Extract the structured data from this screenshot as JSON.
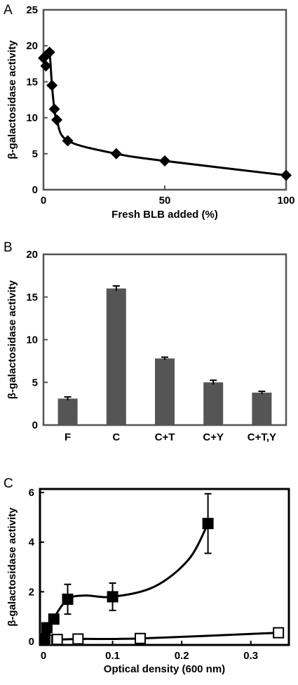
{
  "chart_data": [
    {
      "panel": "A",
      "type": "line",
      "xlabel": "Fresh BLB added (%)",
      "ylabel": "β-galactosidase activity",
      "xlim": [
        0,
        100
      ],
      "ylim": [
        0,
        25
      ],
      "xticks": [
        0,
        50,
        100
      ],
      "yticks": [
        0,
        5,
        10,
        15,
        20,
        25
      ],
      "marker": "diamond",
      "series": [
        {
          "x": [
            0,
            1,
            1.5,
            2.5,
            3.5,
            4.5,
            5.5,
            10,
            30,
            50,
            100
          ],
          "y": [
            18.3,
            17.2,
            18.8,
            19.1,
            14.5,
            11.2,
            9.7,
            6.8,
            5.0,
            4.0,
            2.0
          ]
        }
      ]
    },
    {
      "panel": "B",
      "type": "bar",
      "xlabel": "",
      "ylabel": "β-galactosidase activity",
      "ylim": [
        0,
        20
      ],
      "yticks": [
        0,
        5,
        10,
        15,
        20
      ],
      "categories": [
        "F",
        "C",
        "C+T",
        "C+Y",
        "C+T,Y"
      ],
      "values": [
        3.1,
        16.0,
        7.8,
        5.0,
        3.8
      ],
      "errors": [
        0.2,
        0.3,
        0.15,
        0.25,
        0.15
      ],
      "bar_color": "#555555"
    },
    {
      "panel": "C",
      "type": "line",
      "xlabel": "Optical density (600 nm)",
      "ylabel": "β-galactosidase activity",
      "xlim": [
        0,
        0.35
      ],
      "ylim": [
        0,
        6
      ],
      "xticks": [
        0,
        0.1,
        0.2,
        0.3
      ],
      "xtick_labels": [
        "0",
        "0.1",
        "0.2",
        "0.3"
      ],
      "yticks": [
        0,
        2,
        4,
        6
      ],
      "series": [
        {
          "marker": "filled-square",
          "x": [
            0.002,
            0.005,
            0.015,
            0.035,
            0.1,
            0.238
          ],
          "y": [
            0.1,
            0.55,
            0.9,
            1.7,
            1.8,
            4.75
          ],
          "err": [
            0,
            0,
            0,
            0.6,
            0.55,
            1.2
          ]
        },
        {
          "marker": "open-square",
          "x": [
            0.002,
            0.005,
            0.02,
            0.05,
            0.14,
            0.34
          ],
          "y": [
            0.05,
            0.05,
            0.08,
            0.1,
            0.12,
            0.35
          ],
          "err": [
            0,
            0,
            0,
            0,
            0,
            0
          ]
        }
      ]
    }
  ],
  "labels": {
    "panel_a": "A",
    "panel_b": "B",
    "panel_c": "C"
  }
}
